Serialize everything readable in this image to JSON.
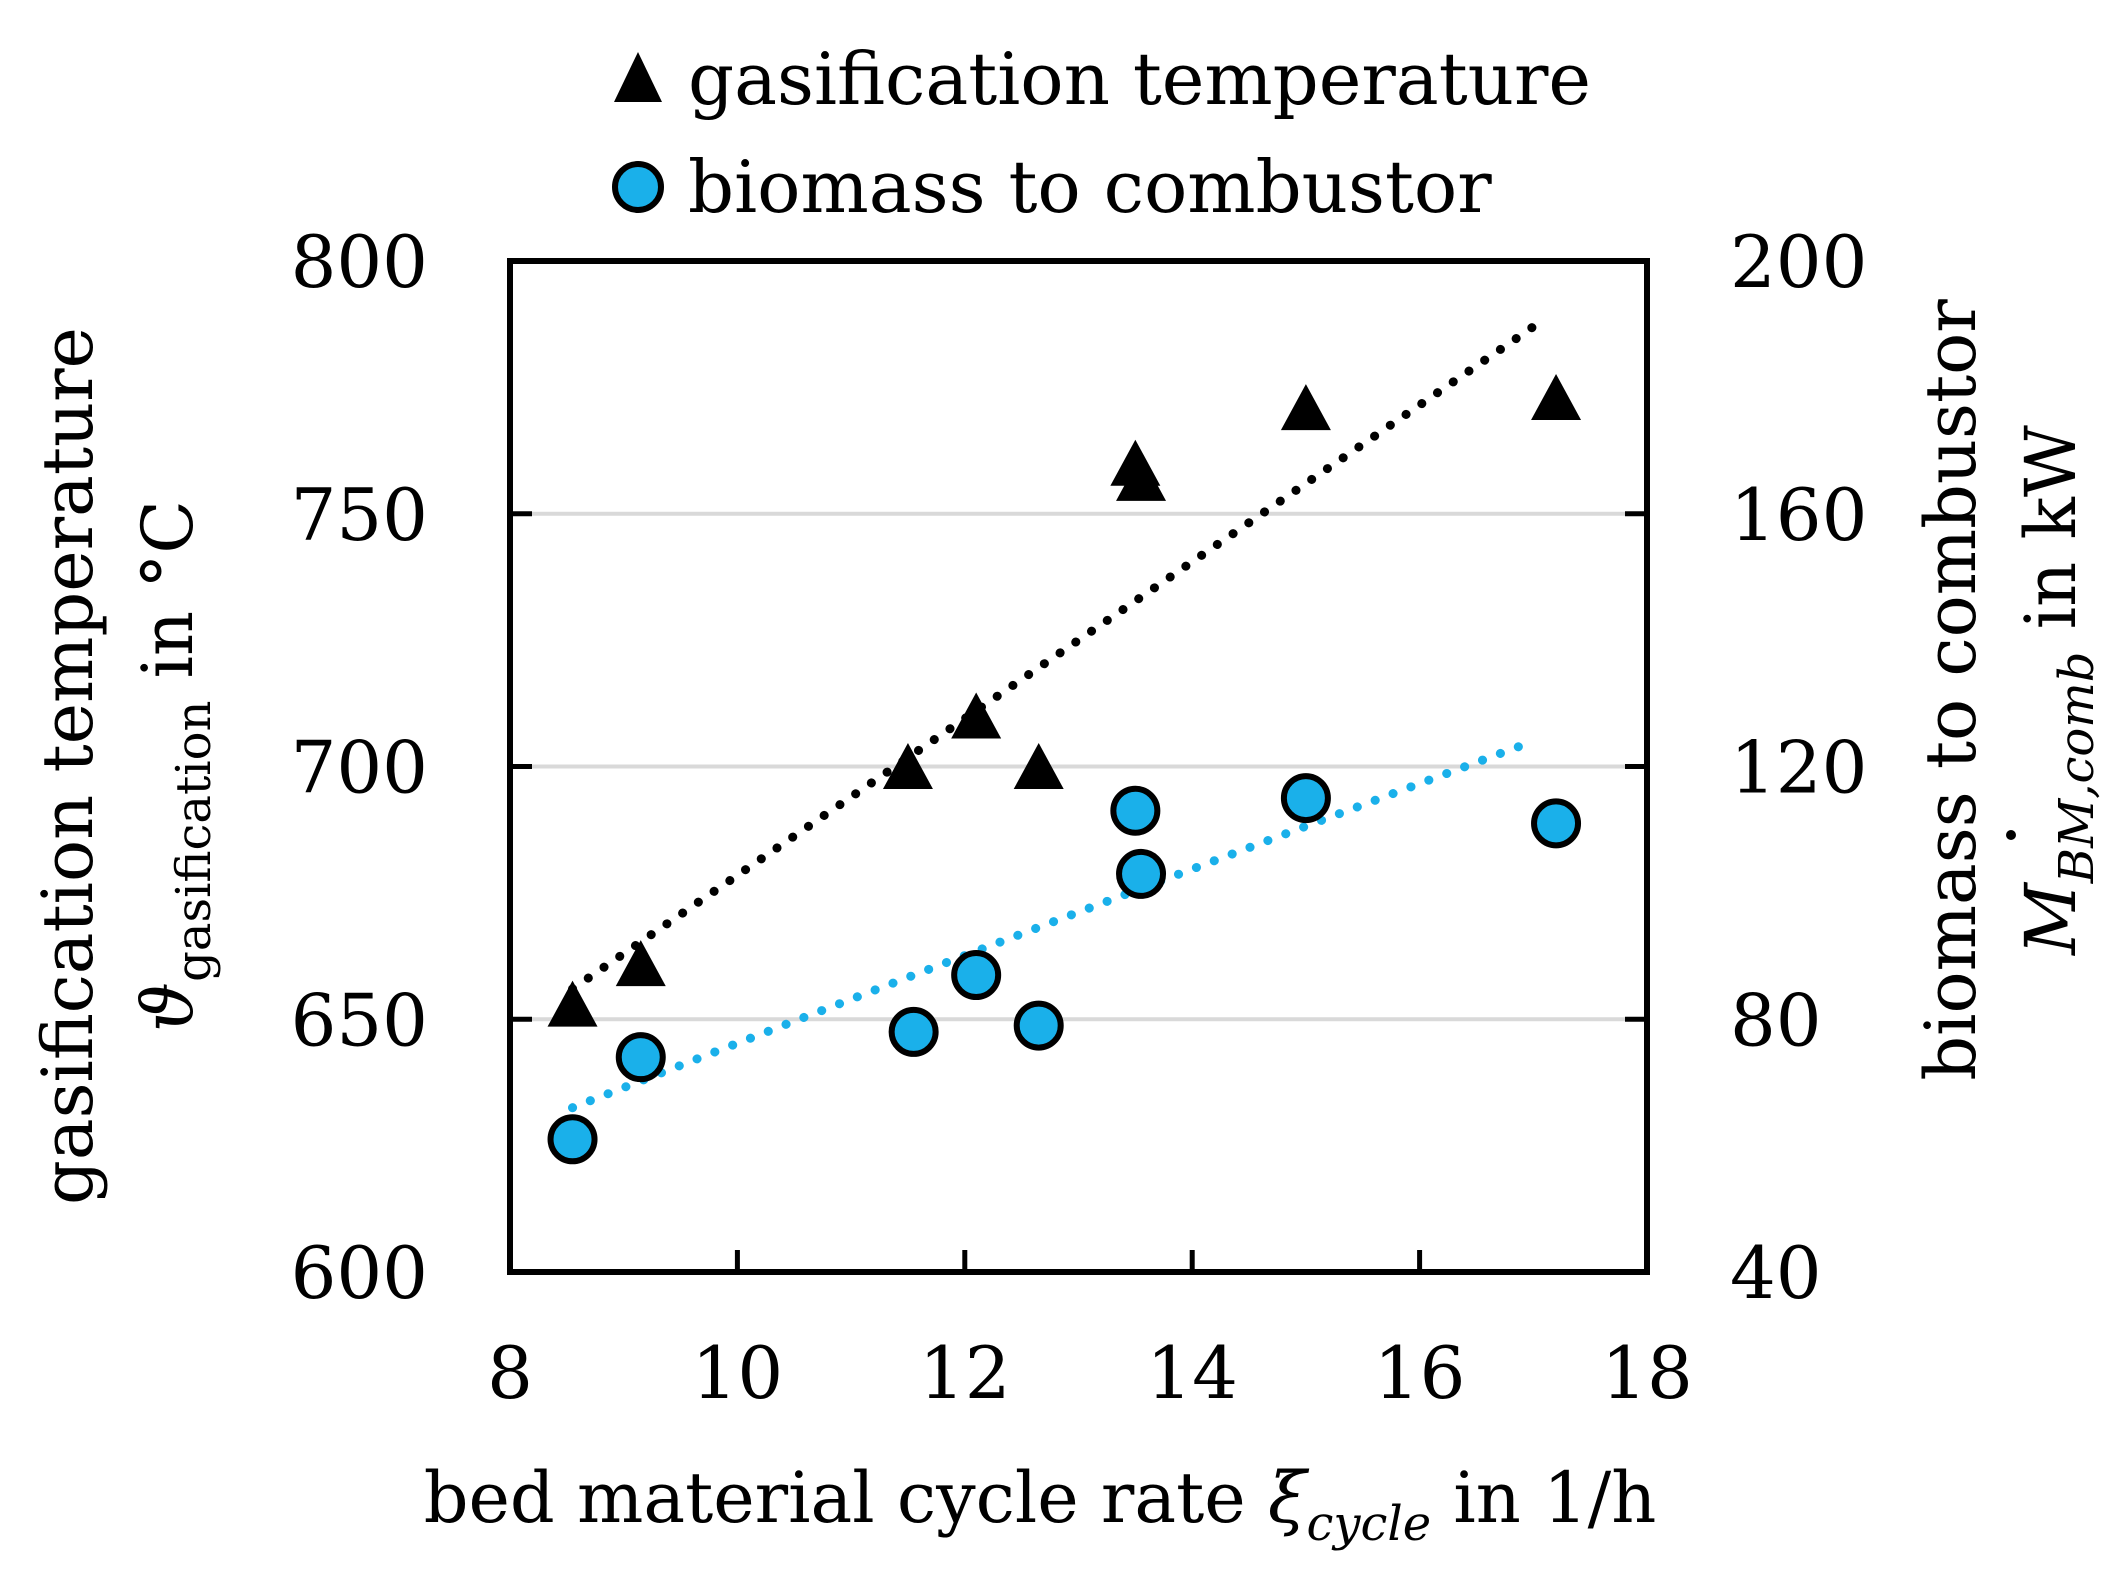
{
  "chart_data": {
    "type": "scatter",
    "xlabel": "bed material cycle rate",
    "xlabel_symbol": "ξ",
    "xlabel_subscript": "cycle",
    "xlabel_unit": "in 1/h",
    "ylabel_left_line1": "gasification temperature",
    "ylabel_left_symbol": "ϑ",
    "ylabel_left_subscript": "gasification",
    "ylabel_left_unit": "in °C",
    "ylabel_right_line1": "biomass to combustor",
    "ylabel_right_symbol": "M",
    "ylabel_right_subscript": "BM,comb",
    "ylabel_right_unit": "in kW",
    "xlim": [
      8,
      18
    ],
    "ylim_left": [
      600,
      800
    ],
    "ylim_right": [
      40,
      200
    ],
    "x_ticks": [
      "8",
      "10",
      "12",
      "14",
      "16",
      "18"
    ],
    "y_left_ticks": [
      "600",
      "650",
      "700",
      "750",
      "800"
    ],
    "y_right_ticks": [
      "40",
      "80",
      "120",
      "160",
      "200"
    ],
    "gridlines": [
      650,
      700,
      750
    ],
    "legend_position": "top",
    "series": [
      {
        "name": "gasification temperature",
        "axis": "left",
        "marker": "triangle",
        "color": "#000000",
        "x": [
          8.55,
          9.15,
          11.5,
          12.1,
          12.65,
          13.5,
          13.55,
          15.0,
          17.2
        ],
        "y": [
          652,
          660,
          699,
          709,
          699,
          759,
          756,
          770,
          772
        ]
      },
      {
        "name": "biomass to combustor",
        "axis": "right",
        "marker": "circle",
        "color": "#1ab0ea",
        "x": [
          8.55,
          9.15,
          11.55,
          12.1,
          12.65,
          13.5,
          13.55,
          15.0,
          17.2
        ],
        "y": [
          61,
          74,
          78,
          87,
          79,
          113,
          103,
          115,
          111
        ]
      }
    ],
    "trendlines": [
      {
        "name": "gasification temperature trend",
        "axis": "left",
        "color": "#000000",
        "x": [
          8.55,
          17.0
        ],
        "y": [
          656,
          787
        ]
      },
      {
        "name": "biomass to combustor trend",
        "axis": "right",
        "color": "#1ab0ea",
        "x": [
          8.55,
          17.0
        ],
        "y": [
          66,
          124
        ],
        "curve": "power"
      }
    ]
  }
}
